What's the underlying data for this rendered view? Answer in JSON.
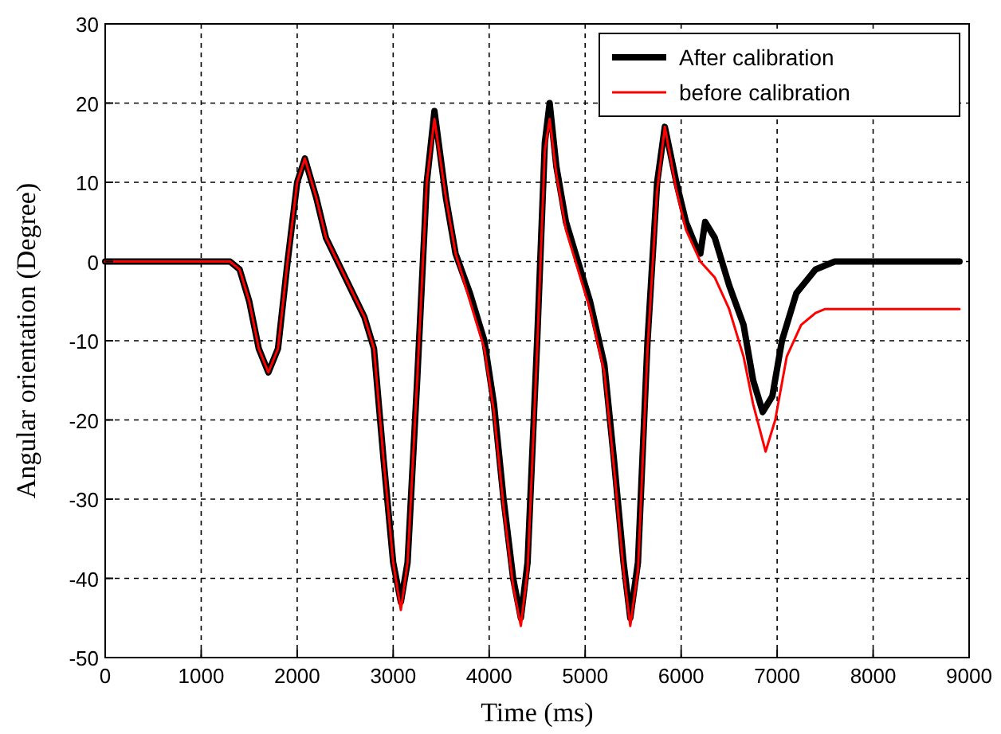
{
  "chart_data": {
    "type": "line",
    "xlabel": "Time (ms)",
    "ylabel": "Angular orientation (Degree)",
    "xlim": [
      0,
      9000
    ],
    "xticks": [
      0,
      1000,
      2000,
      3000,
      4000,
      5000,
      6000,
      7000,
      8000,
      9000
    ],
    "ylim": [
      -50,
      30
    ],
    "yticks": [
      -50,
      -40,
      -30,
      -20,
      -10,
      0,
      10,
      20,
      30
    ],
    "grid": true,
    "legend": "top right",
    "line_style": "solid",
    "series": [
      {
        "name": "After calibration",
        "color": "#000000",
        "x": [
          0,
          1300,
          1400,
          1500,
          1600,
          1700,
          1800,
          1900,
          2000,
          2080,
          2200,
          2300,
          2500,
          2700,
          2800,
          2900,
          3000,
          3080,
          3150,
          3250,
          3350,
          3430,
          3550,
          3650,
          3800,
          3950,
          4050,
          4150,
          4250,
          4330,
          4400,
          4500,
          4580,
          4630,
          4700,
          4800,
          4900,
          5050,
          5200,
          5300,
          5400,
          5470,
          5550,
          5650,
          5750,
          5830,
          5950,
          6050,
          6150,
          6200,
          6250,
          6350,
          6500,
          6650,
          6750,
          6850,
          6950,
          7050,
          7200,
          7400,
          7600,
          8000,
          8900
        ],
        "values": [
          0,
          0,
          -1,
          -5,
          -11,
          -14,
          -11,
          0,
          10,
          13,
          8,
          3,
          -2,
          -7,
          -11,
          -25,
          -38,
          -43,
          -38,
          -15,
          10,
          19,
          8,
          1,
          -4,
          -10,
          -18,
          -30,
          -40,
          -45,
          -38,
          -10,
          15,
          20,
          12,
          5,
          1,
          -5,
          -13,
          -25,
          -38,
          -45,
          -38,
          -10,
          10,
          17,
          10,
          5,
          2,
          1,
          5,
          3,
          -3,
          -8,
          -15,
          -19,
          -17,
          -10,
          -4,
          -1,
          0,
          0,
          0
        ]
      },
      {
        "name": "before calibration",
        "color": "#ff0000",
        "x": [
          0,
          1300,
          1400,
          1500,
          1600,
          1700,
          1800,
          1900,
          2000,
          2080,
          2200,
          2300,
          2500,
          2700,
          2800,
          2900,
          3000,
          3080,
          3150,
          3250,
          3350,
          3430,
          3550,
          3650,
          3800,
          3950,
          4050,
          4150,
          4250,
          4330,
          4400,
          4500,
          4580,
          4630,
          4700,
          4800,
          4900,
          5050,
          5200,
          5300,
          5400,
          5470,
          5550,
          5650,
          5750,
          5830,
          5950,
          6050,
          6200,
          6350,
          6500,
          6650,
          6750,
          6880,
          6980,
          7100,
          7250,
          7400,
          7500,
          8900
        ],
        "values": [
          0,
          0,
          -1,
          -5,
          -11,
          -14,
          -11,
          0,
          10,
          13,
          8,
          3,
          -2,
          -7,
          -11,
          -25,
          -38,
          -44,
          -38,
          -15,
          10,
          18,
          8,
          1,
          -5,
          -11,
          -19,
          -31,
          -41,
          -46,
          -39,
          -11,
          14,
          18,
          11,
          4,
          0,
          -6,
          -14,
          -26,
          -39,
          -46,
          -39,
          -11,
          9,
          17,
          9,
          4,
          0,
          -2,
          -6,
          -12,
          -18,
          -24,
          -20,
          -12,
          -8,
          -6.5,
          -6,
          -6
        ]
      }
    ]
  }
}
